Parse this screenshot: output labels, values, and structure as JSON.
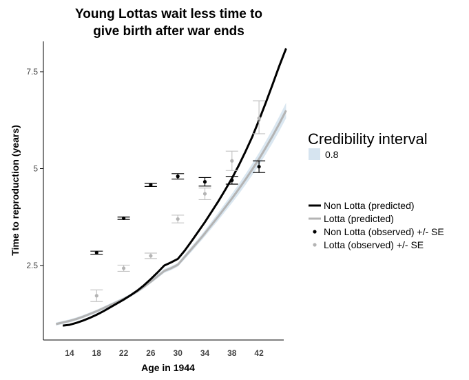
{
  "chart_data": {
    "type": "line",
    "title_lines": [
      "Young Lottas wait less time to",
      "give birth after war ends"
    ],
    "xlabel": "Age in 1944",
    "ylabel": "Time to reproduction (years)",
    "xlim": [
      11.5,
      47.5
    ],
    "ylim": [
      0.55,
      8.55
    ],
    "x_ticks": [
      14,
      18,
      22,
      26,
      30,
      34,
      38,
      42
    ],
    "x_tick_labels": [
      "14",
      "18",
      "22",
      "26",
      "30",
      "34",
      "38",
      "42"
    ],
    "y_ticks": [
      2.5,
      5,
      7.5
    ],
    "y_tick_labels": [
      "2.5",
      "5",
      "7.5"
    ],
    "grid": false,
    "legend_position": "right",
    "colors": {
      "non_lotta": "#000000",
      "lotta": "#b4b4b4",
      "lotta_errorbar": "#c4c4c4",
      "ci_band": "#d6e4f0",
      "axis": "#000000"
    },
    "ci_legend": {
      "title": "Credibility interval",
      "label": "0.8"
    },
    "series": [
      {
        "name": "Non Lotta (predicted)",
        "kind": "line",
        "x": [
          13,
          14,
          15,
          16,
          17,
          18,
          19,
          20,
          21,
          22,
          23,
          24,
          25,
          26,
          27,
          28,
          29,
          30,
          31,
          32,
          33,
          34,
          35,
          36,
          37,
          38,
          39,
          40,
          41,
          42,
          43,
          44,
          45,
          46
        ],
        "y": [
          0.95,
          0.97,
          1.02,
          1.08,
          1.15,
          1.23,
          1.32,
          1.42,
          1.52,
          1.62,
          1.73,
          1.85,
          1.99,
          2.15,
          2.32,
          2.5,
          2.58,
          2.67,
          2.88,
          3.12,
          3.37,
          3.62,
          3.89,
          4.16,
          4.45,
          4.75,
          5.08,
          5.44,
          5.82,
          6.25,
          6.7,
          7.17,
          7.65,
          8.1
        ],
        "ci_lower": [
          0.93,
          0.95,
          1.0,
          1.06,
          1.13,
          1.21,
          1.3,
          1.4,
          1.5,
          1.6,
          1.71,
          1.83,
          1.97,
          2.13,
          2.3,
          2.48,
          2.56,
          2.65,
          2.86,
          3.1,
          3.35,
          3.6,
          3.87,
          4.14,
          4.43,
          4.73,
          5.06,
          5.42,
          5.8,
          6.23,
          6.68,
          7.15,
          7.63,
          8.08
        ],
        "ci_upper": [
          0.97,
          0.99,
          1.04,
          1.1,
          1.17,
          1.25,
          1.34,
          1.44,
          1.54,
          1.64,
          1.75,
          1.87,
          2.01,
          2.17,
          2.34,
          2.52,
          2.6,
          2.69,
          2.9,
          3.14,
          3.39,
          3.64,
          3.91,
          4.18,
          4.47,
          4.77,
          5.1,
          5.46,
          5.84,
          6.27,
          6.72,
          7.19,
          7.67,
          8.12
        ]
      },
      {
        "name": "Lotta (predicted)",
        "kind": "line",
        "x": [
          12,
          13,
          14,
          15,
          16,
          17,
          18,
          19,
          20,
          21,
          22,
          23,
          24,
          25,
          26,
          27,
          28,
          29,
          30,
          31,
          32,
          33,
          34,
          35,
          36,
          37,
          38,
          39,
          40,
          41,
          42,
          43,
          44,
          45,
          46
        ],
        "y": [
          0.99,
          1.03,
          1.07,
          1.12,
          1.18,
          1.25,
          1.32,
          1.4,
          1.48,
          1.56,
          1.64,
          1.73,
          1.83,
          1.95,
          2.08,
          2.22,
          2.36,
          2.43,
          2.52,
          2.72,
          2.92,
          3.12,
          3.33,
          3.55,
          3.77,
          4.0,
          4.23,
          4.47,
          4.72,
          4.98,
          5.25,
          5.54,
          5.84,
          6.16,
          6.5
        ],
        "ci_lower": [
          0.95,
          0.99,
          1.03,
          1.08,
          1.14,
          1.21,
          1.28,
          1.36,
          1.44,
          1.52,
          1.6,
          1.69,
          1.79,
          1.91,
          2.04,
          2.17,
          2.31,
          2.38,
          2.47,
          2.66,
          2.85,
          3.05,
          3.25,
          3.46,
          3.67,
          3.89,
          4.11,
          4.34,
          4.58,
          4.83,
          5.09,
          5.37,
          5.66,
          5.97,
          6.3
        ],
        "ci_upper": [
          1.03,
          1.07,
          1.11,
          1.16,
          1.22,
          1.29,
          1.36,
          1.44,
          1.52,
          1.6,
          1.68,
          1.77,
          1.87,
          1.99,
          2.12,
          2.27,
          2.41,
          2.48,
          2.57,
          2.78,
          2.99,
          3.19,
          3.41,
          3.64,
          3.87,
          4.11,
          4.35,
          4.6,
          4.86,
          5.13,
          5.41,
          5.71,
          6.02,
          6.35,
          6.7
        ]
      },
      {
        "name": "Non Lotta (observed) +/- SE",
        "kind": "points",
        "x": [
          18,
          22,
          26,
          30,
          34,
          38,
          42
        ],
        "y": [
          2.83,
          3.72,
          4.58,
          4.8,
          4.66,
          4.7,
          5.05
        ],
        "se_lower": [
          2.79,
          3.69,
          4.54,
          4.73,
          4.55,
          4.6,
          4.9
        ],
        "se_upper": [
          2.87,
          3.75,
          4.62,
          4.87,
          4.77,
          4.8,
          5.2
        ]
      },
      {
        "name": "Lotta (observed) +/- SE",
        "kind": "points",
        "x": [
          18,
          22,
          26,
          30,
          34,
          38,
          42
        ],
        "y": [
          1.72,
          2.43,
          2.75,
          3.7,
          4.35,
          5.2,
          6.3
        ],
        "se_lower": [
          1.57,
          2.35,
          2.68,
          3.6,
          4.2,
          4.95,
          5.9
        ],
        "se_upper": [
          1.87,
          2.51,
          2.82,
          3.8,
          4.5,
          5.45,
          6.75
        ]
      }
    ]
  }
}
